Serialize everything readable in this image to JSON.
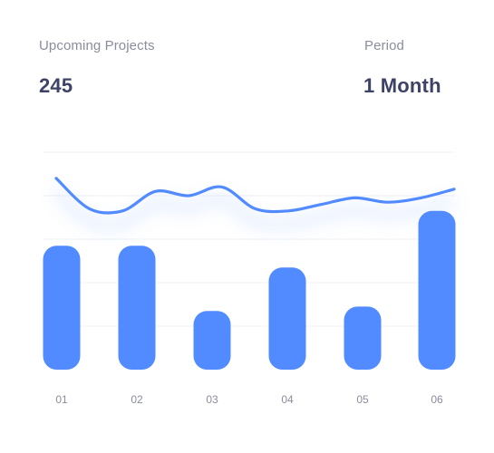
{
  "header": {
    "upcoming_label": "Upcoming Projects",
    "upcoming_value": "245",
    "period_label": "Period",
    "period_value": "1 Month"
  },
  "colors": {
    "accent": "#528bff",
    "grid": "#eef0f4",
    "label": "#8a8d9c",
    "value": "#3d4266"
  },
  "chart_data": [
    {
      "type": "bar",
      "categories": [
        "01",
        "02",
        "03",
        "04",
        "05",
        "06"
      ],
      "values": [
        57,
        57,
        27,
        47,
        29,
        73
      ],
      "ylim": [
        0,
        100
      ],
      "grid": true
    },
    {
      "type": "line",
      "x": [
        0,
        0.5,
        1,
        1.5,
        2,
        2.5,
        3,
        3.5,
        4,
        4.5,
        5,
        5.5,
        6
      ],
      "y": [
        88,
        74,
        73,
        82,
        80,
        84,
        74,
        73,
        76,
        79,
        77,
        79,
        83
      ],
      "ylim": [
        0,
        100
      ],
      "note_marks": "smooth-curve"
    }
  ]
}
